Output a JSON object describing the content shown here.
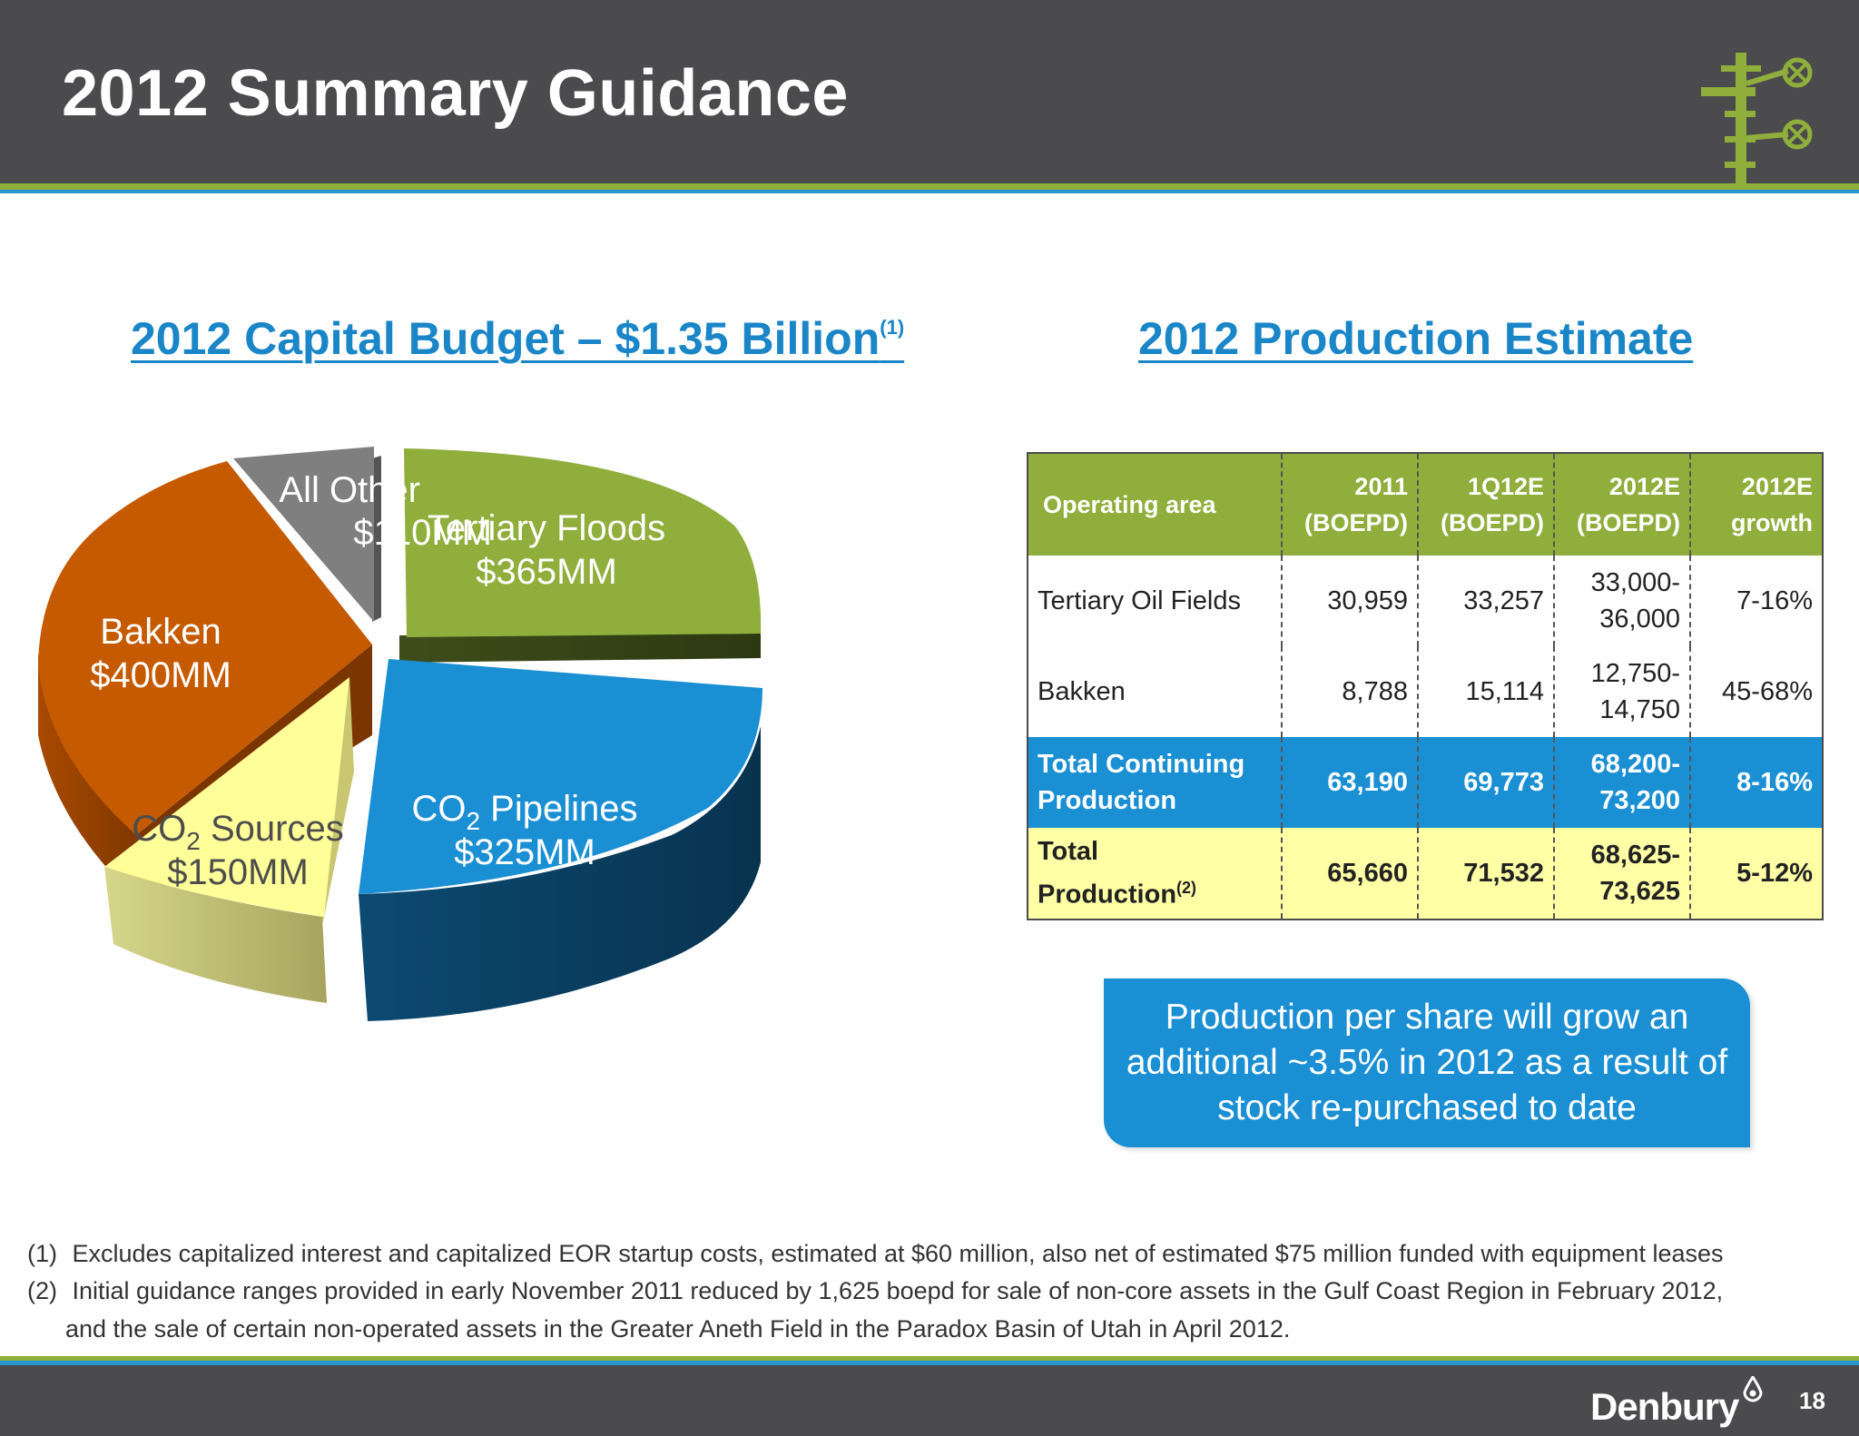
{
  "header": {
    "title": "2012 Summary Guidance"
  },
  "capital_budget": {
    "heading": "2012 Capital Budget – $1.35 Billion",
    "heading_note": "(1)"
  },
  "chart_data": {
    "type": "pie",
    "categories": [
      "Tertiary Floods",
      "CO2 Pipelines",
      "CO2 Sources",
      "Bakken",
      "All Other"
    ],
    "values": [
      365,
      325,
      150,
      400,
      110
    ],
    "value_labels": [
      "$365MM",
      "$325MM",
      "$150MM",
      "$400MM",
      "$110MM"
    ],
    "colors": [
      "#8fae3b",
      "#1a8fd3",
      "#ffff99",
      "#c55a00",
      "#7f7f7f"
    ],
    "slice_names": {
      "tertiary": "Tertiary Floods",
      "pipelines_prefix": "CO",
      "pipelines_sub": "2",
      "pipelines_suffix": " Pipelines",
      "sources_prefix": "CO",
      "sources_sub": "2",
      "sources_suffix": " Sources",
      "bakken": "Bakken",
      "other": "All Other"
    }
  },
  "production": {
    "heading": "2012 Production Estimate",
    "columns": {
      "area": "Operating area",
      "c2011_top": "2011",
      "c2011_bottom": "(BOEPD)",
      "c1q12_top": "1Q12E",
      "c1q12_bottom": "(BOEPD)",
      "c2012_top": "2012E",
      "c2012_bottom": "(BOEPD)",
      "growth_top": "2012E",
      "growth_bottom": "growth"
    },
    "rows": [
      {
        "area": "Tertiary Oil Fields",
        "y2011": "30,959",
        "q1": "33,257",
        "y2012_top": "33,000-",
        "y2012_bottom": "36,000",
        "growth": "7-16%"
      },
      {
        "area": "Bakken",
        "y2011": "8,788",
        "q1": "15,114",
        "y2012_top": "12,750-",
        "y2012_bottom": "14,750",
        "growth": "45-68%"
      },
      {
        "area_top": "Total Continuing",
        "area_bottom": "Production",
        "y2011": "63,190",
        "q1": "69,773",
        "y2012_top": "68,200-",
        "y2012_bottom": "73,200",
        "growth": "8-16%"
      },
      {
        "area_top": "Total",
        "area_bottom": "Production",
        "area_note": "(2)",
        "y2011": "65,660",
        "q1": "71,532",
        "y2012_top": "68,625-",
        "y2012_bottom": "73,625",
        "growth": "5-12%"
      }
    ]
  },
  "callout": {
    "text": "Production per share will grow an additional ~3.5% in 2012 as a result of stock re-purchased to date"
  },
  "footnotes": {
    "n1": "(1)",
    "t1": "Excludes capitalized interest and capitalized EOR startup costs, estimated at $60 million, also net of estimated $75 million funded with equipment leases",
    "n2": "(2)",
    "t2a": "Initial guidance ranges provided in early November 2011 reduced by 1,625 boepd for sale of non-core assets in the Gulf Coast Region in February 2012,",
    "t2b": "and the sale of certain non-operated assets in the Greater Aneth Field in the Paradox Basin of Utah in April 2012."
  },
  "footer": {
    "brand": "Denbury",
    "page_number": "18"
  },
  "icons": [
    "derrick-logo-icon",
    "drop-logo-icon"
  ]
}
